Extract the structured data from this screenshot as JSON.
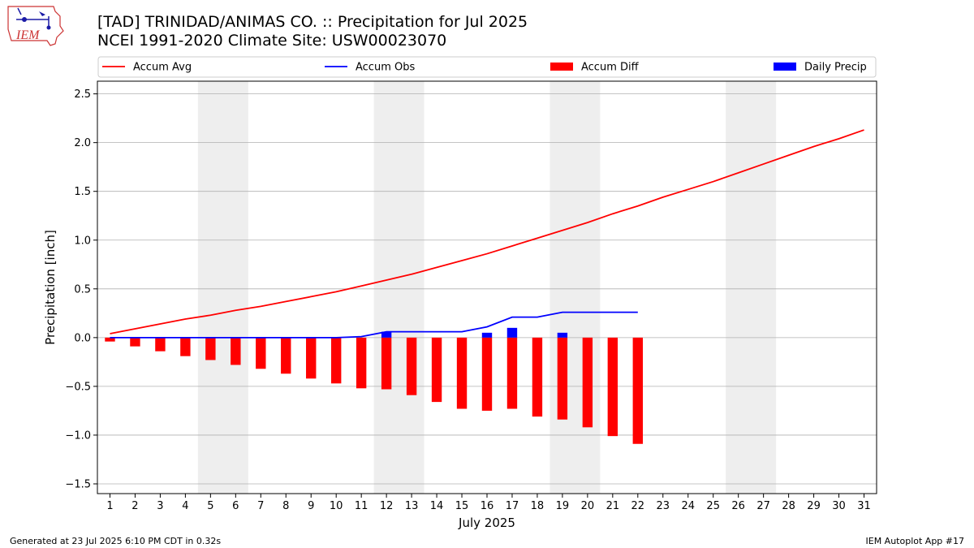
{
  "header": {
    "title_line1": "[TAD] TRINIDAD/ANIMAS CO. :: Precipitation for Jul 2025",
    "title_line2": "NCEI 1991-2020 Climate Site: USW00023070"
  },
  "logo": {
    "text": "IEM"
  },
  "footer": {
    "generated": "Generated at 23 Jul 2025 6:10 PM CDT in 0.32s",
    "app": "IEM Autoplot App #17"
  },
  "colors": {
    "avg": "#ff0000",
    "obs": "#0000ff",
    "diff": "#ff0000",
    "daily": "#0000ff",
    "weekend": "#eeeeee",
    "grid": "#b0b0b0"
  },
  "chart_data": {
    "type": "line",
    "xlabel": "July 2025",
    "ylabel": "Precipitation [inch]",
    "xlim": [
      0.5,
      31.5
    ],
    "ylim": [
      -1.6,
      2.63
    ],
    "yticks": [
      -1.5,
      -1.0,
      -0.5,
      0.0,
      0.5,
      1.0,
      1.5,
      2.0,
      2.5
    ],
    "ytick_labels": [
      "−1.5",
      "−1.0",
      "−0.5",
      "0.0",
      "0.5",
      "1.0",
      "1.5",
      "2.0",
      "2.5"
    ],
    "x": [
      1,
      2,
      3,
      4,
      5,
      6,
      7,
      8,
      9,
      10,
      11,
      12,
      13,
      14,
      15,
      16,
      17,
      18,
      19,
      20,
      21,
      22,
      23,
      24,
      25,
      26,
      27,
      28,
      29,
      30,
      31
    ],
    "xtick_labels": [
      "1",
      "2",
      "3",
      "4",
      "5",
      "6",
      "7",
      "8",
      "9",
      "10",
      "11",
      "12",
      "13",
      "14",
      "15",
      "16",
      "17",
      "18",
      "19",
      "20",
      "21",
      "22",
      "23",
      "24",
      "25",
      "26",
      "27",
      "28",
      "29",
      "30",
      "31"
    ],
    "grid": "horizontal",
    "legend_position": "top",
    "weekend_spans": [
      [
        4.5,
        6.5
      ],
      [
        11.5,
        13.5
      ],
      [
        18.5,
        20.5
      ],
      [
        25.5,
        27.5
      ]
    ],
    "series": [
      {
        "name": "Accum Avg",
        "kind": "line",
        "x": [
          1,
          2,
          3,
          4,
          5,
          6,
          7,
          8,
          9,
          10,
          11,
          12,
          13,
          14,
          15,
          16,
          17,
          18,
          19,
          20,
          21,
          22,
          23,
          24,
          25,
          26,
          27,
          28,
          29,
          30,
          31
        ],
        "values": [
          0.04,
          0.09,
          0.14,
          0.19,
          0.23,
          0.28,
          0.32,
          0.37,
          0.42,
          0.47,
          0.53,
          0.59,
          0.65,
          0.72,
          0.79,
          0.86,
          0.94,
          1.02,
          1.1,
          1.18,
          1.27,
          1.35,
          1.44,
          1.52,
          1.6,
          1.69,
          1.78,
          1.87,
          1.96,
          2.04,
          2.13
        ]
      },
      {
        "name": "Accum Obs",
        "kind": "line",
        "x": [
          1,
          2,
          3,
          4,
          5,
          6,
          7,
          8,
          9,
          10,
          11,
          12,
          13,
          14,
          15,
          16,
          17,
          18,
          19,
          20,
          21,
          22
        ],
        "values": [
          0,
          0,
          0,
          0,
          0,
          0,
          0,
          0,
          0,
          0,
          0.01,
          0.06,
          0.06,
          0.06,
          0.06,
          0.11,
          0.21,
          0.21,
          0.26,
          0.26,
          0.26,
          0.26
        ]
      },
      {
        "name": "Accum Diff",
        "kind": "bar",
        "x": [
          1,
          2,
          3,
          4,
          5,
          6,
          7,
          8,
          9,
          10,
          11,
          12,
          13,
          14,
          15,
          16,
          17,
          18,
          19,
          20,
          21,
          22
        ],
        "values": [
          -0.04,
          -0.09,
          -0.14,
          -0.19,
          -0.23,
          -0.28,
          -0.32,
          -0.37,
          -0.42,
          -0.47,
          -0.52,
          -0.53,
          -0.59,
          -0.66,
          -0.73,
          -0.75,
          -0.73,
          -0.81,
          -0.84,
          -0.92,
          -1.01,
          -1.09
        ]
      },
      {
        "name": "Daily Precip",
        "kind": "bar",
        "x": [
          12,
          16,
          17,
          19
        ],
        "values": [
          0.06,
          0.05,
          0.1,
          0.05
        ]
      }
    ]
  }
}
